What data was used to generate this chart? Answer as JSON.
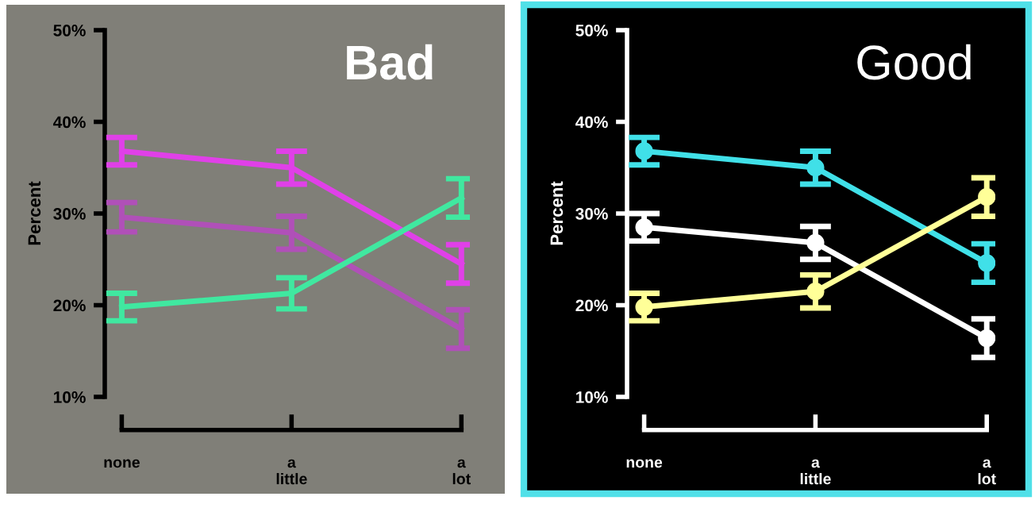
{
  "chart_data": [
    {
      "type": "line",
      "title": "Bad",
      "ylabel": "Percent",
      "categories": [
        "none",
        "a\nlittle",
        "a\nlot"
      ],
      "ylim": [
        10,
        50
      ],
      "yticks": [
        {
          "value": 10,
          "label": "10%"
        },
        {
          "value": 20,
          "label": "20%"
        },
        {
          "value": 30,
          "label": "30%"
        },
        {
          "value": 40,
          "label": "40%"
        },
        {
          "value": 50,
          "label": "50%"
        }
      ],
      "grid": false,
      "legend": false,
      "marker": "none",
      "line_style": "solid",
      "series": [
        {
          "color": "#e040e8",
          "values": [
            36.8,
            35.0,
            24.5
          ],
          "errors": [
            1.5,
            1.8,
            2.1
          ]
        },
        {
          "color": "#b050b8",
          "values": [
            29.6,
            27.9,
            17.4
          ],
          "errors": [
            1.6,
            1.8,
            2.1
          ]
        },
        {
          "color": "#40e8a0",
          "values": [
            19.8,
            21.3,
            31.7
          ],
          "errors": [
            1.5,
            1.7,
            2.1
          ]
        }
      ]
    },
    {
      "type": "line",
      "title": "Good",
      "ylabel": "Percent",
      "categories": [
        "none",
        "a\nlittle",
        "a\nlot"
      ],
      "ylim": [
        10,
        50
      ],
      "yticks": [
        {
          "value": 10,
          "label": "10%"
        },
        {
          "value": 20,
          "label": "20%"
        },
        {
          "value": 30,
          "label": "30%"
        },
        {
          "value": 40,
          "label": "40%"
        },
        {
          "value": 50,
          "label": "50%"
        }
      ],
      "grid": false,
      "legend": false,
      "marker": "circle",
      "line_style": "solid",
      "series": [
        {
          "color": "#40e0e8",
          "values": [
            36.8,
            35.0,
            24.6
          ],
          "errors": [
            1.5,
            1.8,
            2.1
          ]
        },
        {
          "color": "#ffffff",
          "values": [
            28.5,
            26.8,
            16.4
          ],
          "errors": [
            1.5,
            1.8,
            2.1
          ]
        },
        {
          "color": "#ffff98",
          "values": [
            19.8,
            21.5,
            31.8
          ],
          "errors": [
            1.5,
            1.8,
            2.1
          ]
        }
      ]
    }
  ]
}
